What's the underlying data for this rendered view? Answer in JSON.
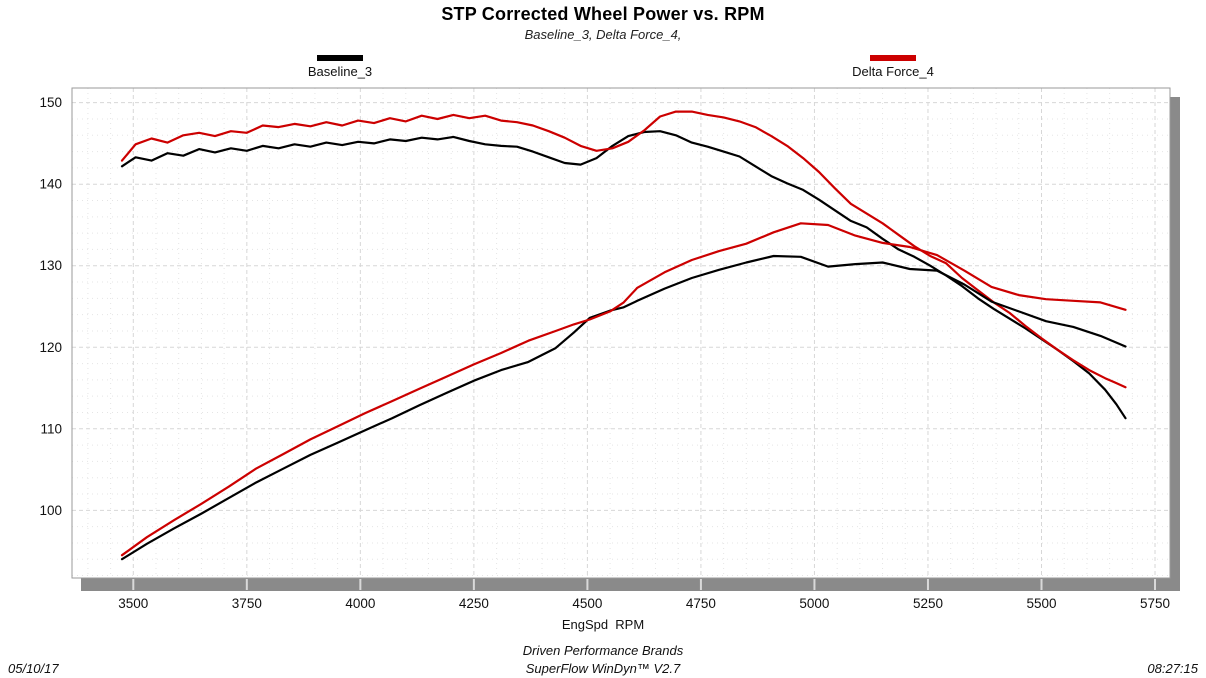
{
  "header": {
    "title": "STP Corrected Wheel Power vs. RPM",
    "subtitle": "Baseline_3, Delta Force_4,"
  },
  "legend": {
    "items": [
      {
        "label": "Baseline_3",
        "color": "#000000"
      },
      {
        "label": "Delta Force_4",
        "color": "#cc0000"
      }
    ]
  },
  "footer": {
    "date": "05/10/17",
    "brand_line": "Driven Performance Brands",
    "software_line": "SuperFlow WinDyn™ V2.7",
    "time": "08:27:15"
  },
  "chart_data": {
    "type": "line",
    "title": "STP Corrected Wheel Power vs. RPM",
    "subtitle": "Baseline_3, Delta Force_4,",
    "xlabel": "EngSpd  RPM",
    "ylabel": "",
    "legend_position": "top",
    "grid": {
      "major_color": "#d7d7d7",
      "minor_color": "#e5e5e5",
      "style": "dashed"
    },
    "colors": {
      "baseline": "#000000",
      "delta": "#cc0000",
      "shadow": "#8a8a8a",
      "border": "#9a9a9a",
      "tick": "#d9d9d9"
    },
    "axes": {
      "x": {
        "min": 3365,
        "max": 5783,
        "major_step": 250,
        "minor_step": 50,
        "ticks": [
          3500,
          3750,
          4000,
          4250,
          4500,
          4750,
          5000,
          5250,
          5500,
          5750
        ]
      },
      "y": {
        "min": 91.7,
        "max": 151.8,
        "major_step": 10,
        "minor_step": 2,
        "ticks": [
          100,
          110,
          120,
          130,
          140,
          150
        ]
      }
    },
    "series": [
      {
        "name": "Baseline_3 upper curve",
        "run": "Baseline_3",
        "color": "#000000",
        "points": [
          [
            3475,
            142.2
          ],
          [
            3505,
            143.3
          ],
          [
            3540,
            142.9
          ],
          [
            3575,
            143.8
          ],
          [
            3610,
            143.5
          ],
          [
            3645,
            144.3
          ],
          [
            3680,
            143.9
          ],
          [
            3715,
            144.4
          ],
          [
            3750,
            144.1
          ],
          [
            3785,
            144.7
          ],
          [
            3820,
            144.4
          ],
          [
            3855,
            144.9
          ],
          [
            3890,
            144.6
          ],
          [
            3925,
            145.1
          ],
          [
            3960,
            144.8
          ],
          [
            3995,
            145.2
          ],
          [
            4030,
            145.0
          ],
          [
            4065,
            145.5
          ],
          [
            4100,
            145.3
          ],
          [
            4135,
            145.7
          ],
          [
            4170,
            145.5
          ],
          [
            4205,
            145.8
          ],
          [
            4240,
            145.3
          ],
          [
            4275,
            144.9
          ],
          [
            4310,
            144.7
          ],
          [
            4345,
            144.6
          ],
          [
            4380,
            144.0
          ],
          [
            4415,
            143.3
          ],
          [
            4450,
            142.6
          ],
          [
            4485,
            142.4
          ],
          [
            4520,
            143.2
          ],
          [
            4555,
            144.7
          ],
          [
            4590,
            145.9
          ],
          [
            4625,
            146.4
          ],
          [
            4660,
            146.5
          ],
          [
            4695,
            146.0
          ],
          [
            4730,
            145.1
          ],
          [
            4765,
            144.6
          ],
          [
            4800,
            144.0
          ],
          [
            4835,
            143.4
          ],
          [
            4870,
            142.2
          ],
          [
            4905,
            141.0
          ],
          [
            4940,
            140.1
          ],
          [
            4975,
            139.3
          ],
          [
            5010,
            138.1
          ],
          [
            5045,
            136.8
          ],
          [
            5080,
            135.5
          ],
          [
            5115,
            134.7
          ],
          [
            5150,
            133.3
          ],
          [
            5185,
            132.0
          ],
          [
            5220,
            131.1
          ],
          [
            5255,
            130.0
          ],
          [
            5290,
            128.8
          ],
          [
            5325,
            127.5
          ],
          [
            5360,
            126.0
          ],
          [
            5395,
            124.7
          ],
          [
            5430,
            123.5
          ],
          [
            5465,
            122.3
          ],
          [
            5500,
            121.0
          ],
          [
            5535,
            119.7
          ],
          [
            5570,
            118.3
          ],
          [
            5605,
            116.8
          ],
          [
            5640,
            114.8
          ],
          [
            5665,
            113.0
          ],
          [
            5685,
            111.3
          ]
        ]
      },
      {
        "name": "Delta Force_4 upper curve",
        "run": "Delta Force_4",
        "color": "#cc0000",
        "points": [
          [
            3475,
            142.9
          ],
          [
            3505,
            144.9
          ],
          [
            3540,
            145.6
          ],
          [
            3575,
            145.1
          ],
          [
            3610,
            146.0
          ],
          [
            3645,
            146.3
          ],
          [
            3680,
            145.9
          ],
          [
            3715,
            146.5
          ],
          [
            3750,
            146.3
          ],
          [
            3785,
            147.2
          ],
          [
            3820,
            147.0
          ],
          [
            3855,
            147.4
          ],
          [
            3890,
            147.1
          ],
          [
            3925,
            147.6
          ],
          [
            3960,
            147.2
          ],
          [
            3995,
            147.8
          ],
          [
            4030,
            147.5
          ],
          [
            4065,
            148.1
          ],
          [
            4100,
            147.7
          ],
          [
            4135,
            148.4
          ],
          [
            4170,
            148.0
          ],
          [
            4205,
            148.5
          ],
          [
            4240,
            148.1
          ],
          [
            4275,
            148.4
          ],
          [
            4310,
            147.8
          ],
          [
            4345,
            147.6
          ],
          [
            4380,
            147.2
          ],
          [
            4415,
            146.5
          ],
          [
            4450,
            145.7
          ],
          [
            4485,
            144.7
          ],
          [
            4520,
            144.1
          ],
          [
            4555,
            144.4
          ],
          [
            4590,
            145.2
          ],
          [
            4625,
            146.6
          ],
          [
            4660,
            148.3
          ],
          [
            4695,
            148.9
          ],
          [
            4730,
            148.9
          ],
          [
            4765,
            148.5
          ],
          [
            4800,
            148.2
          ],
          [
            4835,
            147.7
          ],
          [
            4870,
            147.0
          ],
          [
            4905,
            145.9
          ],
          [
            4940,
            144.7
          ],
          [
            4975,
            143.2
          ],
          [
            5010,
            141.5
          ],
          [
            5045,
            139.5
          ],
          [
            5080,
            137.6
          ],
          [
            5115,
            136.4
          ],
          [
            5150,
            135.2
          ],
          [
            5185,
            133.8
          ],
          [
            5220,
            132.4
          ],
          [
            5255,
            131.2
          ],
          [
            5290,
            130.3
          ],
          [
            5325,
            128.5
          ],
          [
            5360,
            127.0
          ],
          [
            5395,
            125.5
          ],
          [
            5430,
            124.2
          ],
          [
            5465,
            122.6
          ],
          [
            5500,
            121.1
          ],
          [
            5535,
            119.7
          ],
          [
            5570,
            118.4
          ],
          [
            5605,
            117.2
          ],
          [
            5640,
            116.2
          ],
          [
            5665,
            115.6
          ],
          [
            5685,
            115.1
          ]
        ]
      },
      {
        "name": "Baseline_3 lower curve",
        "run": "Baseline_3",
        "color": "#000000",
        "points": [
          [
            3475,
            94.0
          ],
          [
            3530,
            95.9
          ],
          [
            3590,
            97.8
          ],
          [
            3650,
            99.6
          ],
          [
            3710,
            101.5
          ],
          [
            3770,
            103.4
          ],
          [
            3830,
            105.1
          ],
          [
            3890,
            106.8
          ],
          [
            3950,
            108.3
          ],
          [
            4010,
            109.8
          ],
          [
            4070,
            111.3
          ],
          [
            4130,
            112.9
          ],
          [
            4190,
            114.4
          ],
          [
            4250,
            115.9
          ],
          [
            4310,
            117.2
          ],
          [
            4370,
            118.2
          ],
          [
            4430,
            119.9
          ],
          [
            4470,
            121.8
          ],
          [
            4505,
            123.6
          ],
          [
            4550,
            124.5
          ],
          [
            4580,
            124.9
          ],
          [
            4610,
            125.7
          ],
          [
            4670,
            127.2
          ],
          [
            4730,
            128.5
          ],
          [
            4790,
            129.5
          ],
          [
            4850,
            130.4
          ],
          [
            4910,
            131.2
          ],
          [
            4970,
            131.1
          ],
          [
            5030,
            129.9
          ],
          [
            5090,
            130.2
          ],
          [
            5150,
            130.4
          ],
          [
            5210,
            129.6
          ],
          [
            5270,
            129.4
          ],
          [
            5330,
            127.7
          ],
          [
            5390,
            125.6
          ],
          [
            5450,
            124.4
          ],
          [
            5510,
            123.2
          ],
          [
            5570,
            122.5
          ],
          [
            5630,
            121.4
          ],
          [
            5685,
            120.1
          ]
        ]
      },
      {
        "name": "Delta Force_4 lower curve",
        "run": "Delta Force_4",
        "color": "#cc0000",
        "points": [
          [
            3475,
            94.5
          ],
          [
            3530,
            96.7
          ],
          [
            3590,
            98.8
          ],
          [
            3650,
            100.8
          ],
          [
            3710,
            102.9
          ],
          [
            3770,
            105.1
          ],
          [
            3830,
            106.9
          ],
          [
            3890,
            108.7
          ],
          [
            3950,
            110.3
          ],
          [
            4010,
            111.9
          ],
          [
            4070,
            113.4
          ],
          [
            4130,
            114.9
          ],
          [
            4190,
            116.4
          ],
          [
            4250,
            117.9
          ],
          [
            4310,
            119.3
          ],
          [
            4370,
            120.8
          ],
          [
            4430,
            122.0
          ],
          [
            4470,
            122.8
          ],
          [
            4505,
            123.4
          ],
          [
            4550,
            124.4
          ],
          [
            4580,
            125.5
          ],
          [
            4610,
            127.3
          ],
          [
            4670,
            129.2
          ],
          [
            4730,
            130.7
          ],
          [
            4790,
            131.8
          ],
          [
            4850,
            132.7
          ],
          [
            4910,
            134.1
          ],
          [
            4970,
            135.2
          ],
          [
            5030,
            135.0
          ],
          [
            5090,
            133.7
          ],
          [
            5150,
            132.8
          ],
          [
            5210,
            132.3
          ],
          [
            5270,
            131.3
          ],
          [
            5330,
            129.4
          ],
          [
            5390,
            127.4
          ],
          [
            5450,
            126.4
          ],
          [
            5510,
            125.9
          ],
          [
            5570,
            125.7
          ],
          [
            5630,
            125.5
          ],
          [
            5685,
            124.6
          ]
        ]
      }
    ]
  }
}
